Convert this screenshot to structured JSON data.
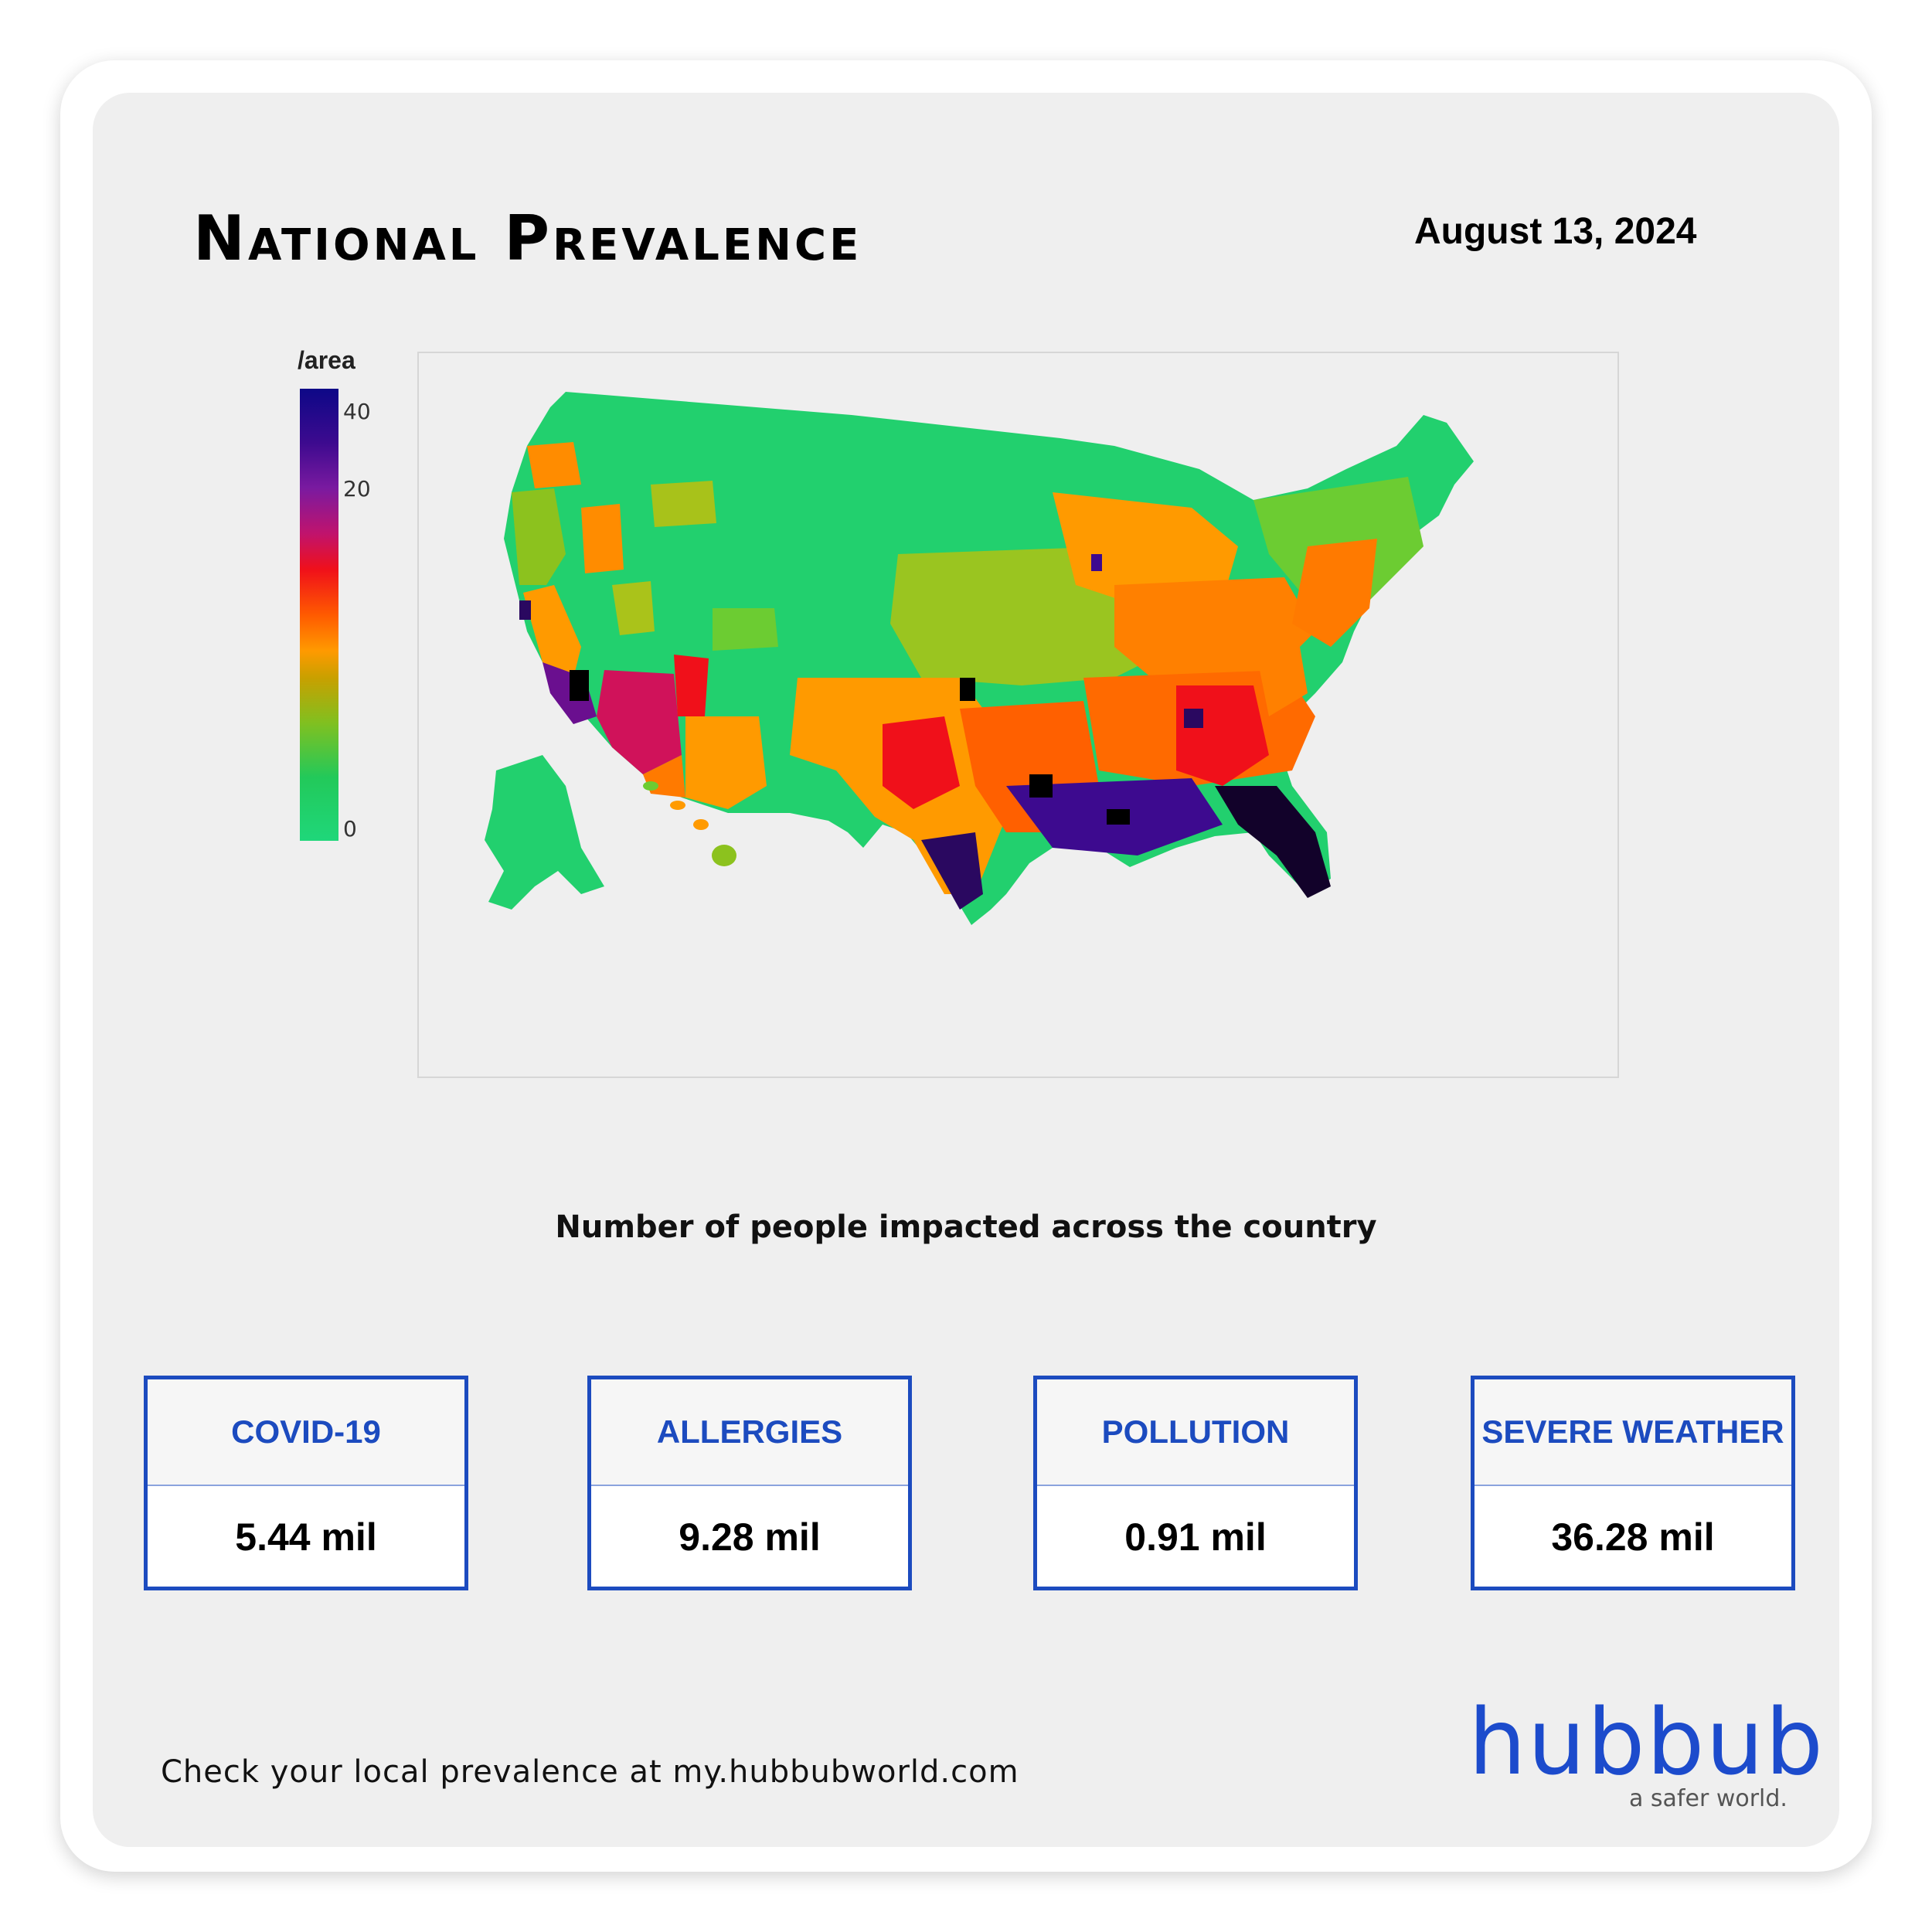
{
  "header": {
    "title": "National Prevalence",
    "date": "August 13, 2024"
  },
  "legend": {
    "title": "/area",
    "ticks": [
      "40",
      "20",
      "0"
    ]
  },
  "map": {
    "colors": {
      "low": "#1fd77a",
      "mid": "#ff9a00",
      "high": "#f0101a",
      "very_high": "#3d0a8f",
      "max": "#000000"
    }
  },
  "subtitle": "Number of people impacted across the country",
  "stats": [
    {
      "label": "COVID-19",
      "value": "5.44 mil"
    },
    {
      "label": "ALLERGIES",
      "value": "9.28 mil"
    },
    {
      "label": "POLLUTION",
      "value": "0.91 mil"
    },
    {
      "label": "SEVERE WEATHER",
      "value": "36.28 mil"
    }
  ],
  "footer": {
    "text": "Check your local prevalence at my.hubbubworld.com",
    "logo": "hubbub",
    "tagline": "a safer world."
  },
  "colors": {
    "accent": "#1c4bbf",
    "background": "#efefef"
  }
}
